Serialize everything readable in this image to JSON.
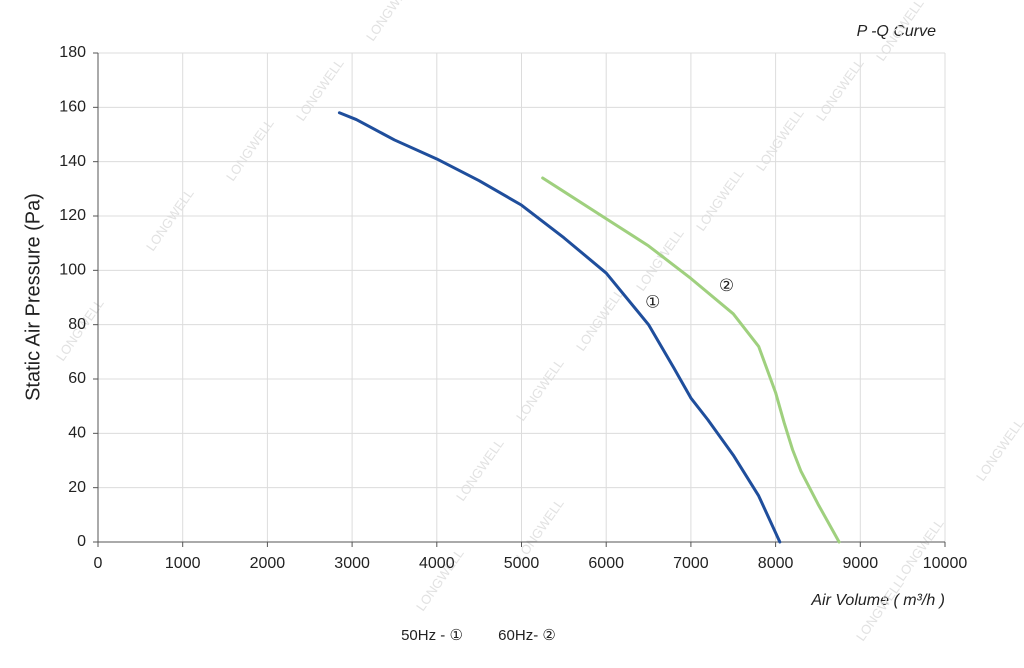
{
  "chart_data": {
    "type": "line",
    "title": "P -Q Curve",
    "x_label": "Air Volume ( m³/h )",
    "y_label": "Static Air Pressure  (Pa)",
    "watermark": "LONGWELL",
    "xlim": [
      0,
      10000
    ],
    "xticks": [
      0,
      1000,
      2000,
      3000,
      4000,
      5000,
      6000,
      7000,
      8000,
      9000,
      10000
    ],
    "ylim": [
      0,
      180
    ],
    "yticks": [
      0,
      20,
      40,
      60,
      80,
      100,
      120,
      140,
      160,
      180
    ],
    "grid": true,
    "series": [
      {
        "name": "50Hz - ①",
        "color": "#1f4e9c",
        "x": [
          2850,
          3050,
          3500,
          4000,
          4500,
          5000,
          5500,
          6000,
          6500,
          6800,
          7000,
          7200,
          7500,
          7800,
          8050
        ],
        "values": [
          158,
          155.5,
          148,
          141,
          133,
          124,
          112,
          99,
          80,
          64,
          53,
          45,
          32,
          17,
          0
        ]
      },
      {
        "name": "60Hz- ②",
        "color": "#9fd07e",
        "x": [
          5250,
          5500,
          6000,
          6500,
          7000,
          7500,
          7800,
          8000,
          8100,
          8200,
          8300,
          8500,
          8750
        ],
        "values": [
          134,
          129,
          119,
          109,
          97,
          84,
          72,
          55,
          44,
          34,
          26,
          14,
          0
        ]
      }
    ],
    "annotations": [
      {
        "text": "①",
        "x": 6550,
        "y": 88
      },
      {
        "text": "②",
        "x": 7420,
        "y": 94
      }
    ]
  }
}
